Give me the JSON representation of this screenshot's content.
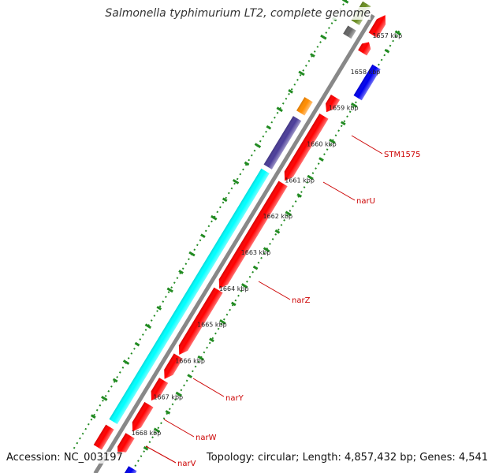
{
  "title": "Salmonella typhimurium LT2, complete genome",
  "footer": {
    "accession": "Accession: NC_003197",
    "summary": "Topology: circular; Length: 4,857,432 bp; Genes: 4,541"
  },
  "ticks": [
    {
      "label": "1657 kbp"
    },
    {
      "label": "1658 kbp"
    },
    {
      "label": "1659 kbp"
    },
    {
      "label": "1660 kbp"
    },
    {
      "label": "1661 kbp"
    },
    {
      "label": "1662 kbp"
    },
    {
      "label": "1663 kbp"
    },
    {
      "label": "1664 kbp"
    },
    {
      "label": "1665 kbp"
    },
    {
      "label": "1666 kbp"
    },
    {
      "label": "1667 kbp"
    },
    {
      "label": "1668 kbp"
    }
  ],
  "gene_labels": [
    "STM1575",
    "narU",
    "narZ",
    "narY",
    "narW",
    "narV"
  ],
  "colors": {
    "forward_cds": "#ff0000",
    "reverse_cds": "#ff0000",
    "orf": "#0000ee",
    "other": "#ff8c00",
    "purple": "#4b3d99",
    "cyan": "#00ffff",
    "olive": "#6b8e23",
    "gray": "#666666",
    "ticks": "#228b22",
    "backbone": "#888888",
    "label_line": "#cc0000"
  }
}
